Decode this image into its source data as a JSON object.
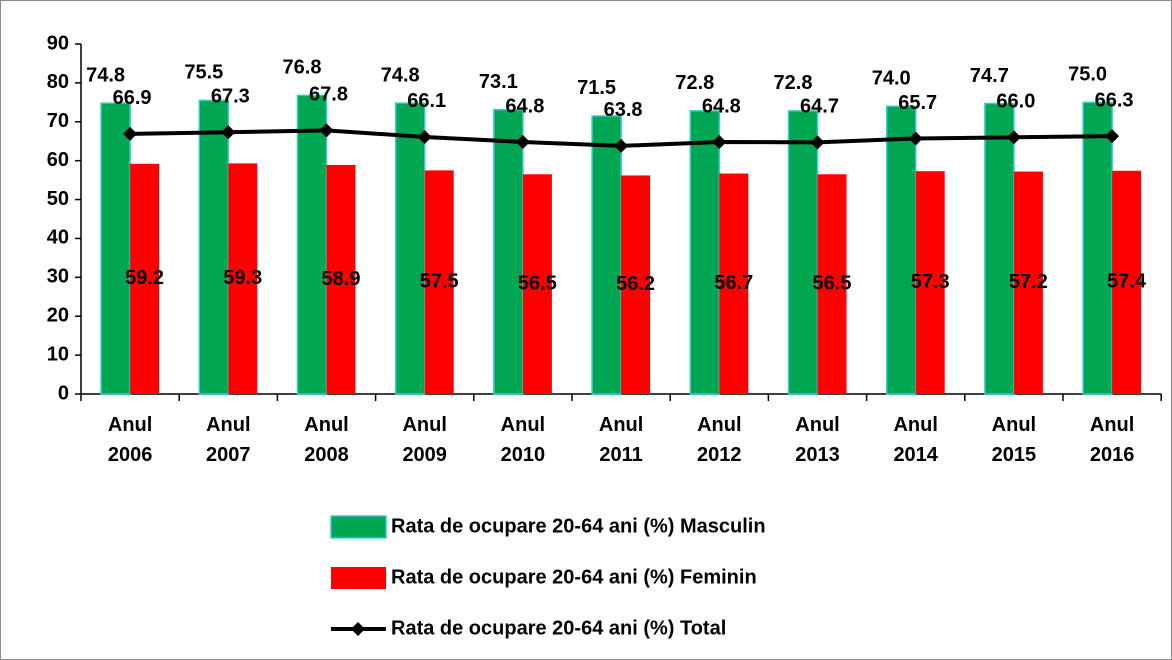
{
  "chart_data": {
    "type": "bar_line",
    "categories": [
      "Anul 2006",
      "Anul 2007",
      "Anul 2008",
      "Anul 2009",
      "Anul 2010",
      "Anul 2011",
      "Anul 2012",
      "Anul 2013",
      "Anul 2014",
      "Anul 2015",
      "Anul 2016"
    ],
    "series": [
      {
        "name": "Rata de ocupare 20-64 ani (%) Masculin",
        "type": "bar",
        "color": "#00a651",
        "values": [
          74.8,
          75.5,
          76.8,
          74.8,
          73.1,
          71.5,
          72.8,
          72.8,
          74.0,
          74.7,
          75.0
        ],
        "value_labels": [
          "74.8",
          "75.5",
          "76.8",
          "74.8",
          "73.1",
          "71.5",
          "72.8",
          "72.8",
          "74.0",
          "74.7",
          "75.0"
        ]
      },
      {
        "name": "Rata de ocupare 20-64 ani (%) Feminin",
        "type": "bar",
        "color": "#ff0000",
        "values": [
          59.2,
          59.3,
          58.9,
          57.5,
          56.5,
          56.2,
          56.7,
          56.5,
          57.3,
          57.2,
          57.4
        ]
      },
      {
        "name": "Rata de ocupare 20-64 ani (%) Total",
        "type": "line",
        "color": "#000000",
        "values": [
          66.9,
          67.3,
          67.8,
          66.1,
          64.8,
          63.8,
          64.8,
          64.7,
          65.7,
          66.0,
          66.3
        ],
        "value_labels": [
          "66.9",
          "67.3",
          "67.8",
          "66.1",
          "64.8",
          "63.8",
          "64.8",
          "64.7",
          "65.7",
          "66.0",
          "66.3"
        ]
      }
    ],
    "ylim": [
      0,
      90
    ],
    "yticks": [
      0,
      10,
      20,
      30,
      40,
      50,
      60,
      70,
      80,
      90
    ],
    "grid": false
  }
}
